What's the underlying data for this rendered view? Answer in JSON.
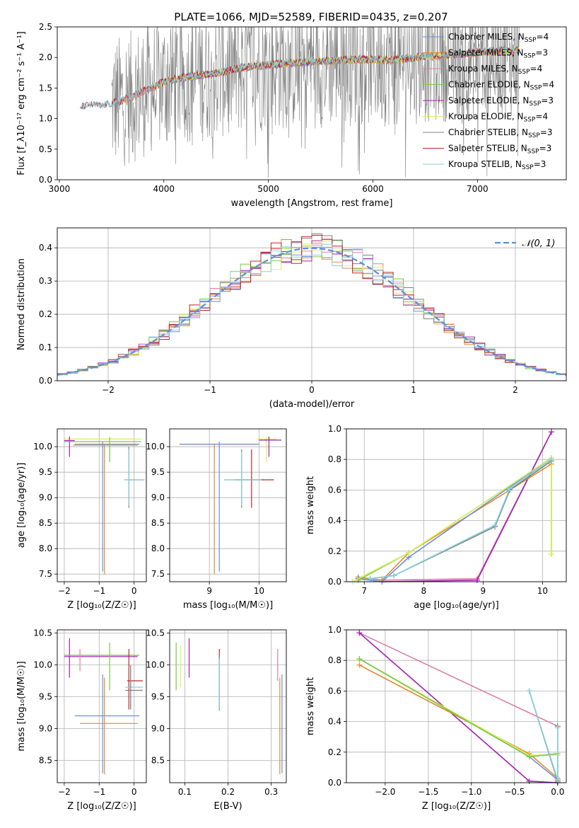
{
  "title": "PLATE=1066, MJD=52589, FIBERID=0435, z=0.207",
  "colors": {
    "chabrier_miles": "#6b8fd8",
    "salpeter_miles": "#e58a2c",
    "kroupa_miles": "#e07ca0",
    "chabrier_elodie": "#7ac943",
    "salpeter_elodie": "#a020b0",
    "kroupa_elodie": "#d7f05a",
    "chabrier_stelib": "#808080",
    "salpeter_stelib": "#c0282a",
    "kroupa_stelib": "#82d2dc",
    "normal": "#5b8fd9"
  },
  "chart_data": [
    {
      "id": "spectrum",
      "type": "line",
      "xlabel": "wavelength [Angstrom, rest frame]",
      "ylabel": "Flux [f_λ10⁻¹⁷ erg cm⁻² s⁻¹ A⁻¹]",
      "xlim": [
        2980,
        7850
      ],
      "ylim": [
        0,
        2.5
      ],
      "xticks": [
        "3000",
        "4000",
        "5000",
        "6000",
        "7000"
      ],
      "yticks": [
        "0.0",
        "0.5",
        "1.0",
        "1.5",
        "2.0",
        "2.5"
      ],
      "legend_position": "right",
      "legend": [
        {
          "label": "Chabrier MILES, N",
          "sub": "SSP",
          "suffix": "=4",
          "color_key": "chabrier_miles"
        },
        {
          "label": "Salpeter MILES, N",
          "sub": "SSP",
          "suffix": "=3",
          "color_key": "salpeter_miles"
        },
        {
          "label": "Kroupa MILES, N",
          "sub": "SSP",
          "suffix": "=4",
          "color_key": "kroupa_miles"
        },
        {
          "label": "Chabrier ELODIE, N",
          "sub": "SSP",
          "suffix": "=4",
          "color_key": "chabrier_elodie"
        },
        {
          "label": "Salpeter ELODIE, N",
          "sub": "SSP",
          "suffix": "=3",
          "color_key": "salpeter_elodie"
        },
        {
          "label": "Kroupa ELODIE, N",
          "sub": "SSP",
          "suffix": "=4",
          "color_key": "kroupa_elodie"
        },
        {
          "label": "Chabrier STELIB, N",
          "sub": "SSP",
          "suffix": "=3",
          "color_key": "chabrier_stelib"
        },
        {
          "label": "Salpeter STELIB, N",
          "sub": "SSP",
          "suffix": "=3",
          "color_key": "salpeter_stelib"
        },
        {
          "label": "Kroupa STELIB, N",
          "sub": "SSP",
          "suffix": "=3",
          "color_key": "kroupa_stelib"
        }
      ],
      "continuum": [
        [
          3200,
          1.18
        ],
        [
          3300,
          1.22
        ],
        [
          3400,
          1.2
        ],
        [
          3500,
          1.24
        ],
        [
          3600,
          1.3
        ],
        [
          3700,
          1.36
        ],
        [
          3800,
          1.45
        ],
        [
          3900,
          1.52
        ],
        [
          4000,
          1.6
        ],
        [
          4200,
          1.68
        ],
        [
          4400,
          1.72
        ],
        [
          4600,
          1.78
        ],
        [
          4800,
          1.85
        ],
        [
          5000,
          1.88
        ],
        [
          5300,
          1.92
        ],
        [
          5600,
          1.95
        ],
        [
          5900,
          1.97
        ],
        [
          6200,
          1.96
        ],
        [
          6500,
          2.02
        ],
        [
          6800,
          2.05
        ],
        [
          7100,
          2.1
        ],
        [
          7400,
          2.12
        ]
      ]
    },
    {
      "id": "residuals",
      "type": "line",
      "xlabel": "(data-model)/error",
      "ylabel": "Normed distribution",
      "xlim": [
        -2.5,
        2.5
      ],
      "ylim": [
        0,
        0.46
      ],
      "xticks": [
        "−2",
        "−1",
        "0",
        "1",
        "2"
      ],
      "yticks": [
        "0.0",
        "0.1",
        "0.2",
        "0.3",
        "0.4"
      ],
      "grid": true,
      "legend": {
        "label": "𝒩(0, 1)",
        "position": "top-right"
      },
      "bin_width": 0.1
    },
    {
      "id": "age_vs_Z",
      "type": "scatter",
      "xlabel": "Z [log₁₀(Z/Z☉)]",
      "ylabel": "age  [log₁₀(age/yr)]",
      "xlim": [
        -2.2,
        0.35
      ],
      "ylim": [
        7.35,
        10.35
      ],
      "xticks": [
        "−2",
        "−1",
        "0"
      ],
      "yticks": [
        "7.5",
        "8.0",
        "8.5",
        "9.0",
        "9.5",
        "10.0"
      ],
      "grid": true,
      "errorbars": [
        {
          "series": "kroupa_elodie",
          "x": -0.7,
          "xlo": -2.0,
          "xhi": 0.2,
          "y": 10.15,
          "ylo": 9.7,
          "yhi": 10.2
        },
        {
          "series": "chabrier_miles",
          "x": -0.9,
          "xlo": -1.7,
          "xhi": 0.15,
          "y": 10.05,
          "ylo": 7.55,
          "yhi": 10.1
        },
        {
          "series": "salpeter_miles",
          "x": -0.85,
          "xlo": -1.75,
          "xhi": 0.1,
          "y": 10.03,
          "ylo": 7.5,
          "yhi": 10.05
        },
        {
          "series": "salpeter_elodie",
          "x": -1.85,
          "xlo": -2.0,
          "xhi": -1.7,
          "y": 10.12,
          "ylo": 9.8,
          "yhi": 10.2
        },
        {
          "series": "chabrier_stelib",
          "x": -0.15,
          "xlo": -0.25,
          "xhi": 0.3,
          "y": 9.35,
          "ylo": 8.8,
          "yhi": 10.0
        },
        {
          "series": "kroupa_stelib",
          "x": -0.15,
          "xlo": -0.3,
          "xhi": 0.3,
          "y": 9.35,
          "ylo": 8.85,
          "yhi": 9.95
        },
        {
          "series": "chabrier_elodie",
          "x": -0.7,
          "xlo": -2.0,
          "xhi": 0.2,
          "y": 10.1,
          "ylo": 9.7,
          "yhi": 10.18
        }
      ]
    },
    {
      "id": "age_vs_mass",
      "type": "scatter",
      "xlabel": "mass [log₁₀(M/M☉)]",
      "xlim": [
        8.2,
        10.55
      ],
      "ylim": [
        7.35,
        10.35
      ],
      "xticks": [
        "9",
        "10"
      ],
      "yticks": [
        "7.5",
        "8.0",
        "8.5",
        "9.0",
        "9.5",
        "10.0"
      ],
      "grid": true,
      "errorbars": [
        {
          "series": "salpeter_miles",
          "x": 9.1,
          "xlo": 8.4,
          "xhi": 10.0,
          "y": 10.05,
          "ylo": 7.5,
          "yhi": 10.05
        },
        {
          "series": "chabrier_miles",
          "x": 9.2,
          "xlo": 8.4,
          "xhi": 10.0,
          "y": 10.05,
          "ylo": 7.55,
          "yhi": 10.1
        },
        {
          "series": "kroupa_elodie",
          "x": 10.15,
          "xlo": 9.95,
          "xhi": 10.35,
          "y": 10.15,
          "ylo": 9.7,
          "yhi": 10.2
        },
        {
          "series": "salpeter_elodie",
          "x": 10.2,
          "xlo": 10.0,
          "xhi": 10.45,
          "y": 10.13,
          "ylo": 9.8,
          "yhi": 10.2
        },
        {
          "series": "chabrier_stelib",
          "x": 9.65,
          "xlo": 9.3,
          "xhi": 10.1,
          "y": 9.35,
          "ylo": 8.8,
          "yhi": 9.95
        },
        {
          "series": "salpeter_stelib",
          "x": 9.85,
          "xlo": 9.5,
          "xhi": 10.3,
          "y": 9.35,
          "ylo": 8.8,
          "yhi": 9.95
        },
        {
          "series": "kroupa_stelib",
          "x": 9.65,
          "xlo": 9.3,
          "xhi": 10.05,
          "y": 9.35,
          "ylo": 8.85,
          "yhi": 9.9
        }
      ]
    },
    {
      "id": "mass_weight_vs_age",
      "type": "line",
      "xlabel": "age  [log₁₀(age/yr)]",
      "ylabel": "mass weight",
      "xlim": [
        6.7,
        10.4
      ],
      "ylim": [
        0,
        1.0
      ],
      "xticks": [
        "7",
        "8",
        "9",
        "10"
      ],
      "yticks": [
        "0.0",
        "0.2",
        "0.4",
        "0.6",
        "0.8",
        "1.0"
      ],
      "grid": true,
      "series": [
        {
          "color_key": "kroupa_miles",
          "x": [
            6.9,
            7.3,
            8.9,
            10.15
          ],
          "y": [
            0.03,
            0.01,
            0.02,
            0.98
          ]
        },
        {
          "color_key": "salpeter_elodie",
          "x": [
            6.9,
            7.3,
            8.9,
            10.15
          ],
          "y": [
            0.02,
            0.0,
            0.01,
            0.98
          ]
        },
        {
          "color_key": "salpeter_miles",
          "x": [
            6.9,
            7.3,
            7.75,
            10.15
          ],
          "y": [
            0.03,
            0.01,
            0.19,
            0.77
          ]
        },
        {
          "color_key": "chabrier_miles",
          "x": [
            6.9,
            7.3,
            7.75,
            10.15
          ],
          "y": [
            0.02,
            0.0,
            0.16,
            0.81
          ]
        },
        {
          "color_key": "chabrier_elodie",
          "x": [
            6.9,
            7.75,
            10.15,
            10.15
          ],
          "y": [
            0.01,
            0.19,
            0.81,
            0.18
          ]
        },
        {
          "color_key": "kroupa_elodie",
          "x": [
            6.8,
            7.75,
            10.15,
            10.15
          ],
          "y": [
            0.0,
            0.19,
            0.81,
            0.18
          ]
        },
        {
          "color_key": "chabrier_stelib",
          "x": [
            7.1,
            7.5,
            9.2,
            9.45,
            10.15
          ],
          "y": [
            0.02,
            0.04,
            0.36,
            0.6,
            0.79
          ]
        },
        {
          "color_key": "kroupa_stelib",
          "x": [
            7.1,
            7.5,
            9.2,
            9.45,
            10.15
          ],
          "y": [
            0.02,
            0.04,
            0.37,
            0.61,
            0.8
          ]
        }
      ]
    },
    {
      "id": "mass_vs_Z",
      "type": "scatter",
      "xlabel": "Z [log₁₀(Z/Z☉)]",
      "ylabel": "mass [log₁₀(M/M☉)]",
      "xlim": [
        -2.2,
        0.35
      ],
      "ylim": [
        8.15,
        10.55
      ],
      "xticks": [
        "−2",
        "−1",
        "0"
      ],
      "yticks": [
        "8.5",
        "9.0",
        "9.5",
        "10.0",
        "10.5"
      ],
      "grid": true,
      "errorbars": [
        {
          "series": "salpeter_elodie",
          "x": -1.85,
          "xlo": -2.0,
          "xhi": 0.1,
          "y": 10.13,
          "ylo": 9.8,
          "yhi": 10.42
        },
        {
          "series": "kroupa_miles",
          "x": -1.55,
          "xlo": -2.0,
          "xhi": 0.1,
          "y": 10.15,
          "ylo": 9.9,
          "yhi": 10.25
        },
        {
          "series": "chabrier_elodie",
          "x": -0.7,
          "xlo": -2.0,
          "xhi": 0.15,
          "y": 10.15,
          "ylo": 9.6,
          "yhi": 10.35
        },
        {
          "series": "chabrier_miles",
          "x": -0.9,
          "xlo": -1.7,
          "xhi": 0.15,
          "y": 9.2,
          "ylo": 8.3,
          "yhi": 9.85
        },
        {
          "series": "salpeter_miles",
          "x": -0.85,
          "xlo": -1.55,
          "xhi": 0.1,
          "y": 9.08,
          "ylo": 8.28,
          "yhi": 9.8
        },
        {
          "series": "salpeter_stelib",
          "x": -0.15,
          "xlo": -0.2,
          "xhi": 0.25,
          "y": 9.75,
          "ylo": 9.3,
          "yhi": 10.25
        },
        {
          "series": "kroupa_stelib",
          "x": -0.1,
          "xlo": -0.25,
          "xhi": 0.25,
          "y": 9.65,
          "ylo": 9.3,
          "yhi": 10.0
        },
        {
          "series": "chabrier_stelib",
          "x": -0.1,
          "xlo": -0.25,
          "xhi": 0.25,
          "y": 9.6,
          "ylo": 9.3,
          "yhi": 10.0
        }
      ]
    },
    {
      "id": "mass_vs_EBV",
      "type": "scatter",
      "xlabel": "E(B-V)",
      "xlim": [
        0.065,
        0.335
      ],
      "ylim": [
        8.15,
        10.55
      ],
      "xticks": [
        "0.1",
        "0.2",
        "0.3"
      ],
      "yticks": [
        "8.5",
        "9.0",
        "9.5",
        "10.0",
        "10.5"
      ],
      "grid": true,
      "errorbars": [
        {
          "series": "chabrier_elodie",
          "x": 0.08,
          "y": 10.0,
          "ylo": 9.6,
          "yhi": 10.35
        },
        {
          "series": "kroupa_elodie",
          "x": 0.09,
          "y": 10.0,
          "ylo": 9.65,
          "yhi": 10.3
        },
        {
          "series": "salpeter_elodie",
          "x": 0.11,
          "y": 10.1,
          "ylo": 9.8,
          "yhi": 10.42
        },
        {
          "series": "salpeter_stelib",
          "x": 0.18,
          "y": 9.8,
          "ylo": 9.3,
          "yhi": 10.25
        },
        {
          "series": "chabrier_stelib",
          "x": 0.18,
          "y": 9.7,
          "ylo": 9.28,
          "yhi": 10.15
        },
        {
          "series": "kroupa_stelib",
          "x": 0.18,
          "y": 9.7,
          "ylo": 9.3,
          "yhi": 10.1
        },
        {
          "series": "kroupa_miles",
          "x": 0.315,
          "y": 10.0,
          "ylo": 9.75,
          "yhi": 10.25
        },
        {
          "series": "salpeter_miles",
          "x": 0.32,
          "y": 9.0,
          "ylo": 8.28,
          "yhi": 9.8
        },
        {
          "series": "chabrier_miles",
          "x": 0.325,
          "y": 9.1,
          "ylo": 8.3,
          "yhi": 9.85
        }
      ]
    },
    {
      "id": "mass_weight_vs_Z",
      "type": "line",
      "xlabel": "Z [log₁₀(Z/Z☉)]",
      "ylabel": "mass weight",
      "xlim": [
        -2.45,
        0.1
      ],
      "ylim": [
        0,
        1.0
      ],
      "xticks": [
        "−2.0",
        "−1.5",
        "−1.0",
        "−0.5",
        "0.0"
      ],
      "yticks": [
        "0.0",
        "0.2",
        "0.4",
        "0.6",
        "0.8",
        "1.0"
      ],
      "grid": true,
      "series": [
        {
          "color_key": "kroupa_miles",
          "x": [
            -2.3,
            0.0,
            0.0
          ],
          "y": [
            0.98,
            0.37,
            0.02
          ]
        },
        {
          "color_key": "salpeter_elodie",
          "x": [
            -2.3,
            -0.33,
            0.0
          ],
          "y": [
            0.98,
            0.01,
            0.0
          ]
        },
        {
          "color_key": "salpeter_miles",
          "x": [
            -2.3,
            -0.33,
            0.0
          ],
          "y": [
            0.77,
            0.19,
            0.03
          ]
        },
        {
          "color_key": "chabrier_miles",
          "x": [
            -2.3,
            -0.33,
            0.0
          ],
          "y": [
            0.81,
            0.17,
            0.02
          ]
        },
        {
          "color_key": "kroupa_elodie",
          "x": [
            -2.3,
            -0.33,
            0.0,
            0.0
          ],
          "y": [
            0.81,
            0.18,
            0.18,
            0.01
          ]
        },
        {
          "color_key": "chabrier_elodie",
          "x": [
            -2.3,
            -0.33,
            0.0,
            0.0
          ],
          "y": [
            0.81,
            0.17,
            0.19,
            0.01
          ]
        },
        {
          "color_key": "chabrier_stelib",
          "x": [
            -0.33,
            0.0,
            0.0
          ],
          "y": [
            0.6,
            0.01,
            0.37
          ]
        },
        {
          "color_key": "kroupa_stelib",
          "x": [
            -0.33,
            0.0,
            0.0
          ],
          "y": [
            0.6,
            0.02,
            0.36
          ]
        }
      ]
    }
  ]
}
